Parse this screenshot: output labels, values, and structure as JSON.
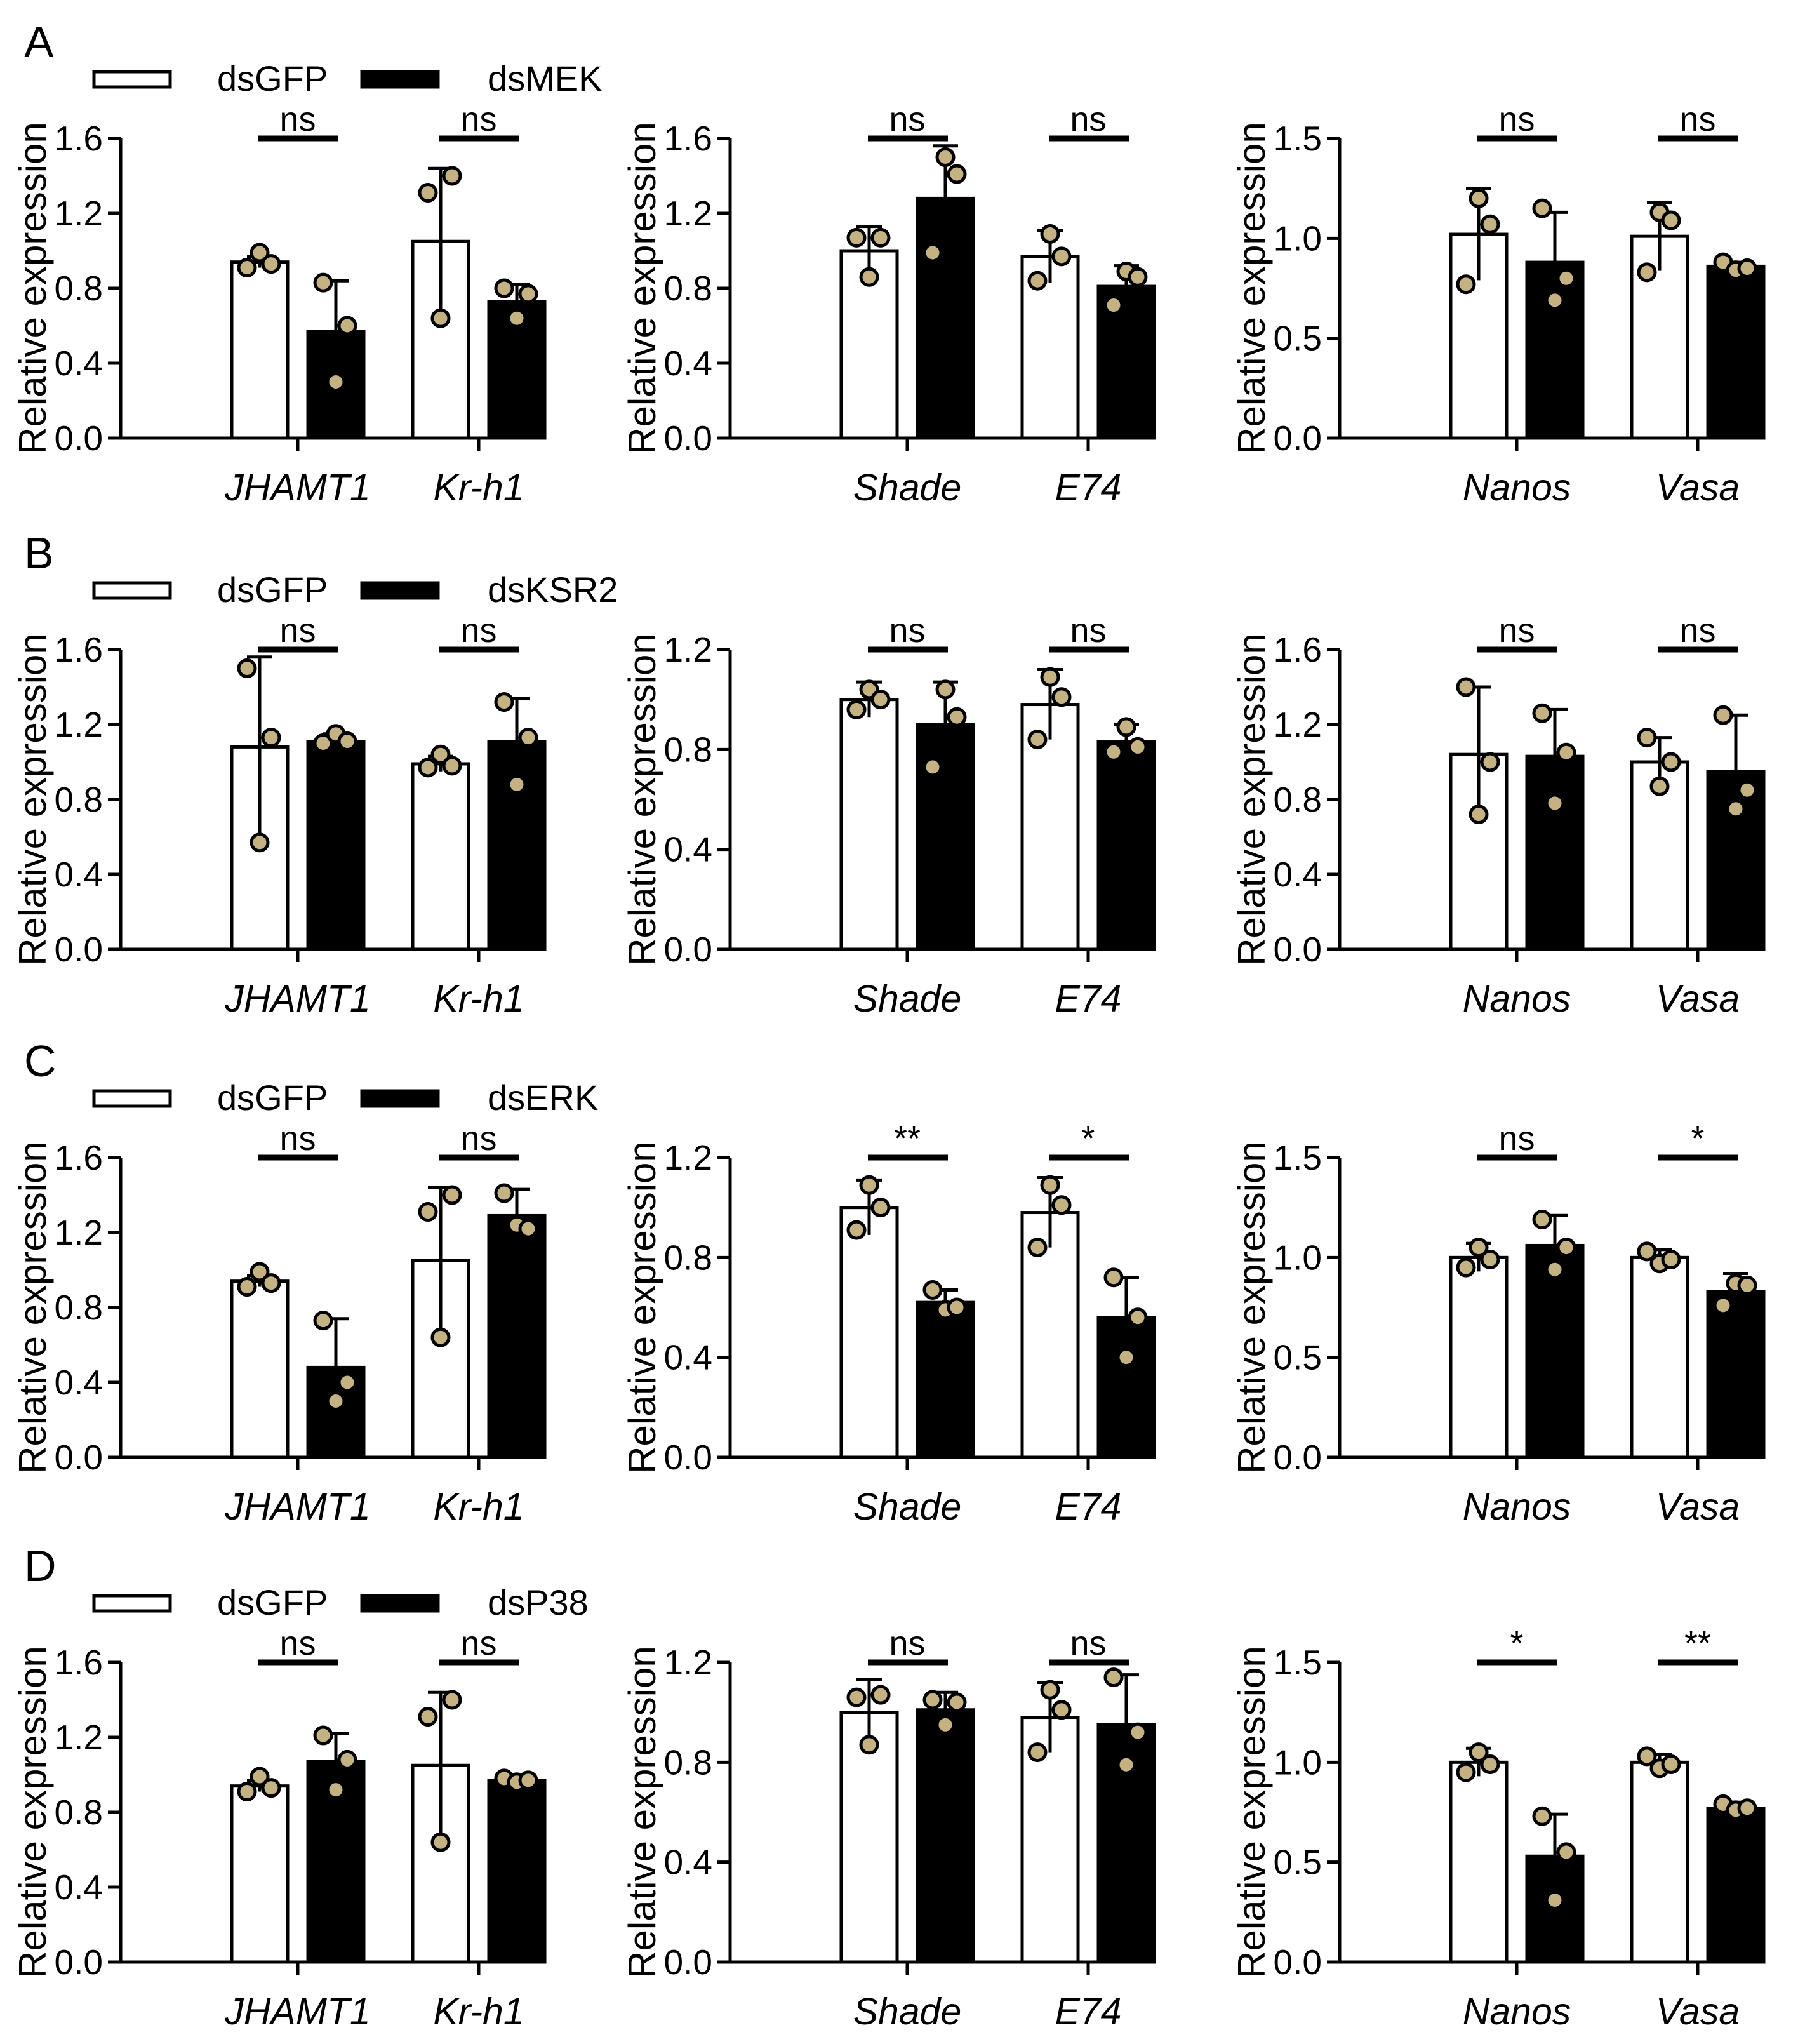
{
  "colors": {
    "control_fill": "#ffffff",
    "treatment_fill": "#000000",
    "dot_fill": "#c4b283",
    "stroke": "#000000"
  },
  "chart_data": [
    {
      "row": "A",
      "legend": [
        "dsGFP",
        "dsMEK"
      ],
      "panels": [
        {
          "type": "bar",
          "ylabel": "Relative expression",
          "ylim": [
            0,
            1.6
          ],
          "yticks": [
            "0.0",
            "0.4",
            "0.8",
            "1.2",
            "1.6"
          ],
          "categories": [
            "JHAMT1",
            "Kr-h1"
          ],
          "series": [
            {
              "name": "dsGFP",
              "means": [
                0.94,
                1.05
              ],
              "errors": [
                0.03,
                0.39
              ],
              "points": [
                [
                  0.91,
                  0.99,
                  0.93
                ],
                [
                  1.31,
                  0.64,
                  1.4
                ]
              ]
            },
            {
              "name": "dsMEK",
              "means": [
                0.57,
                0.73
              ],
              "errors": [
                0.27,
                0.09
              ],
              "points": [
                [
                  0.83,
                  0.3,
                  0.6
                ],
                [
                  0.8,
                  0.64,
                  0.77
                ]
              ]
            }
          ],
          "significance": [
            "ns",
            "ns"
          ]
        },
        {
          "type": "bar",
          "ylabel": "Relative expression",
          "ylim": [
            0,
            1.6
          ],
          "yticks": [
            "0.0",
            "0.4",
            "0.8",
            "1.2",
            "1.6"
          ],
          "categories": [
            "Shade",
            "E74"
          ],
          "series": [
            {
              "name": "dsGFP",
              "means": [
                1.0,
                0.97
              ],
              "errors": [
                0.13,
                0.14
              ],
              "points": [
                [
                  1.07,
                  0.86,
                  1.07
                ],
                [
                  0.84,
                  1.09,
                  0.97
                ]
              ]
            },
            {
              "name": "dsMEK",
              "means": [
                1.28,
                0.81
              ],
              "errors": [
                0.28,
                0.11
              ],
              "points": [
                [
                  0.99,
                  1.5,
                  1.41
                ],
                [
                  0.71,
                  0.89,
                  0.86
                ]
              ]
            }
          ],
          "significance": [
            "ns",
            "ns"
          ]
        },
        {
          "type": "bar",
          "ylabel": "Relative expression",
          "ylim": [
            0,
            1.5
          ],
          "yticks": [
            "0.0",
            "0.5",
            "1.0",
            "1.5"
          ],
          "categories": [
            "Nanos",
            "Vasa"
          ],
          "series": [
            {
              "name": "dsGFP",
              "means": [
                1.02,
                1.01
              ],
              "errors": [
                0.23,
                0.17
              ],
              "points": [
                [
                  0.77,
                  1.2,
                  1.07
                ],
                [
                  0.83,
                  1.13,
                  1.09
                ]
              ]
            },
            {
              "name": "dsMEK",
              "means": [
                0.88,
                0.86
              ],
              "errors": [
                0.25,
                0.02
              ],
              "points": [
                [
                  1.15,
                  0.69,
                  0.8
                ],
                [
                  0.88,
                  0.84,
                  0.85
                ]
              ]
            }
          ],
          "significance": [
            "ns",
            "ns"
          ]
        }
      ]
    },
    {
      "row": "B",
      "legend": [
        "dsGFP",
        "dsKSR2"
      ],
      "panels": [
        {
          "type": "bar",
          "ylabel": "Relative expression",
          "ylim": [
            0,
            1.6
          ],
          "yticks": [
            "0.0",
            "0.4",
            "0.8",
            "1.2",
            "1.6"
          ],
          "categories": [
            "JHAMT1",
            "Kr-h1"
          ],
          "series": [
            {
              "name": "dsGFP",
              "means": [
                1.08,
                0.99
              ],
              "errors": [
                0.48,
                0.04
              ],
              "points": [
                [
                  1.5,
                  0.57,
                  1.13
                ],
                [
                  0.97,
                  1.04,
                  0.98
                ]
              ]
            },
            {
              "name": "dsKSR2",
              "means": [
                1.11,
                1.11
              ],
              "errors": [
                0.04,
                0.23
              ],
              "points": [
                [
                  1.1,
                  1.15,
                  1.11
                ],
                [
                  1.32,
                  0.88,
                  1.13
                ]
              ]
            }
          ],
          "significance": [
            "ns",
            "ns"
          ]
        },
        {
          "type": "bar",
          "ylabel": "Relative expression",
          "ylim": [
            0,
            1.2
          ],
          "yticks": [
            "0.0",
            "0.4",
            "0.8",
            "1.2"
          ],
          "categories": [
            "Shade",
            "E74"
          ],
          "series": [
            {
              "name": "dsGFP",
              "means": [
                1.0,
                0.98
              ],
              "errors": [
                0.07,
                0.14
              ],
              "points": [
                [
                  0.96,
                  1.04,
                  1.0
                ],
                [
                  0.84,
                  1.09,
                  1.01
                ]
              ]
            },
            {
              "name": "dsKSR2",
              "means": [
                0.9,
                0.83
              ],
              "errors": [
                0.17,
                0.07
              ],
              "points": [
                [
                  0.73,
                  1.04,
                  0.93
                ],
                [
                  0.79,
                  0.89,
                  0.81
                ]
              ]
            }
          ],
          "significance": [
            "ns",
            "ns"
          ]
        },
        {
          "type": "bar",
          "ylabel": "Relative expression",
          "ylim": [
            0,
            1.6
          ],
          "yticks": [
            "0.0",
            "0.4",
            "0.8",
            "1.2",
            "1.6"
          ],
          "categories": [
            "Nanos",
            "Vasa"
          ],
          "series": [
            {
              "name": "dsGFP",
              "means": [
                1.04,
                1.0
              ],
              "errors": [
                0.36,
                0.13
              ],
              "points": [
                [
                  1.4,
                  0.72,
                  1.0
                ],
                [
                  1.13,
                  0.87,
                  1.0
                ]
              ]
            },
            {
              "name": "dsKSR2",
              "means": [
                1.03,
                0.95
              ],
              "errors": [
                0.25,
                0.3
              ],
              "points": [
                [
                  1.26,
                  0.78,
                  1.05
                ],
                [
                  1.25,
                  0.75,
                  0.85
                ]
              ]
            }
          ],
          "significance": [
            "ns",
            "ns"
          ]
        }
      ]
    },
    {
      "row": "C",
      "legend": [
        "dsGFP",
        "dsERK"
      ],
      "panels": [
        {
          "type": "bar",
          "ylabel": "Relative expression",
          "ylim": [
            0,
            1.6
          ],
          "yticks": [
            "0.0",
            "0.4",
            "0.8",
            "1.2",
            "1.6"
          ],
          "categories": [
            "JHAMT1",
            "Kr-h1"
          ],
          "series": [
            {
              "name": "dsGFP",
              "means": [
                0.94,
                1.05
              ],
              "errors": [
                0.03,
                0.39
              ],
              "points": [
                [
                  0.91,
                  0.99,
                  0.93
                ],
                [
                  1.31,
                  0.64,
                  1.4
                ]
              ]
            },
            {
              "name": "dsERK",
              "means": [
                0.48,
                1.29
              ],
              "errors": [
                0.26,
                0.14
              ],
              "points": [
                [
                  0.73,
                  0.3,
                  0.4
                ],
                [
                  1.41,
                  1.24,
                  1.22
                ]
              ]
            }
          ],
          "significance": [
            "ns",
            "ns"
          ]
        },
        {
          "type": "bar",
          "ylabel": "Relative expression",
          "ylim": [
            0,
            1.2
          ],
          "yticks": [
            "0.0",
            "0.4",
            "0.8",
            "1.2"
          ],
          "categories": [
            "Shade",
            "E74"
          ],
          "series": [
            {
              "name": "dsGFP",
              "means": [
                1.0,
                0.98
              ],
              "errors": [
                0.11,
                0.14
              ],
              "points": [
                [
                  0.91,
                  1.09,
                  1.0
                ],
                [
                  0.84,
                  1.09,
                  1.01
                ]
              ]
            },
            {
              "name": "dsERK",
              "means": [
                0.62,
                0.56
              ],
              "errors": [
                0.05,
                0.16
              ],
              "points": [
                [
                  0.67,
                  0.59,
                  0.6
                ],
                [
                  0.72,
                  0.4,
                  0.56
                ]
              ]
            }
          ],
          "significance": [
            "**",
            "*"
          ]
        },
        {
          "type": "bar",
          "ylabel": "Relative expression",
          "ylim": [
            0,
            1.5
          ],
          "yticks": [
            "0.0",
            "0.5",
            "1.0",
            "1.5"
          ],
          "categories": [
            "Nanos",
            "Vasa"
          ],
          "series": [
            {
              "name": "dsGFP",
              "means": [
                1.0,
                1.0
              ],
              "errors": [
                0.07,
                0.04
              ],
              "points": [
                [
                  0.95,
                  1.05,
                  0.99
                ],
                [
                  1.03,
                  0.97,
                  0.99
                ]
              ]
            },
            {
              "name": "dsERK",
              "means": [
                1.06,
                0.83
              ],
              "errors": [
                0.15,
                0.09
              ],
              "points": [
                [
                  1.19,
                  0.94,
                  1.05
                ],
                [
                  0.76,
                  0.87,
                  0.86
                ]
              ]
            }
          ],
          "significance": [
            "ns",
            "*"
          ]
        }
      ]
    },
    {
      "row": "D",
      "legend": [
        "dsGFP",
        "dsP38"
      ],
      "panels": [
        {
          "type": "bar",
          "ylabel": "Relative expression",
          "ylim": [
            0,
            1.6
          ],
          "yticks": [
            "0.0",
            "0.4",
            "0.8",
            "1.2",
            "1.6"
          ],
          "categories": [
            "JHAMT1",
            "Kr-h1"
          ],
          "series": [
            {
              "name": "dsGFP",
              "means": [
                0.94,
                1.05
              ],
              "errors": [
                0.03,
                0.39
              ],
              "points": [
                [
                  0.91,
                  0.99,
                  0.93
                ],
                [
                  1.31,
                  0.64,
                  1.4
                ]
              ]
            },
            {
              "name": "dsP38",
              "means": [
                1.07,
                0.97
              ],
              "errors": [
                0.15,
                0.02
              ],
              "points": [
                [
                  1.21,
                  0.92,
                  1.08
                ],
                [
                  0.98,
                  0.96,
                  0.97
                ]
              ]
            }
          ],
          "significance": [
            "ns",
            "ns"
          ]
        },
        {
          "type": "bar",
          "ylabel": "Relative expression",
          "ylim": [
            0,
            1.2
          ],
          "yticks": [
            "0.0",
            "0.4",
            "0.8",
            "1.2"
          ],
          "categories": [
            "Shade",
            "E74"
          ],
          "series": [
            {
              "name": "dsGFP",
              "means": [
                1.0,
                0.98
              ],
              "errors": [
                0.13,
                0.14
              ],
              "points": [
                [
                  1.06,
                  0.87,
                  1.07
                ],
                [
                  0.84,
                  1.09,
                  1.01
                ]
              ]
            },
            {
              "name": "dsP38",
              "means": [
                1.01,
                0.95
              ],
              "errors": [
                0.07,
                0.2
              ],
              "points": [
                [
                  1.05,
                  0.95,
                  1.04
                ],
                [
                  1.14,
                  0.79,
                  0.92
                ]
              ]
            }
          ],
          "significance": [
            "ns",
            "ns"
          ]
        },
        {
          "type": "bar",
          "ylabel": "Relative expression",
          "ylim": [
            0,
            1.5
          ],
          "yticks": [
            "0.0",
            "0.5",
            "1.0",
            "1.5"
          ],
          "categories": [
            "Nanos",
            "Vasa"
          ],
          "series": [
            {
              "name": "dsGFP",
              "means": [
                1.0,
                1.0
              ],
              "errors": [
                0.07,
                0.04
              ],
              "points": [
                [
                  0.95,
                  1.05,
                  0.99
                ],
                [
                  1.03,
                  0.97,
                  0.99
                ]
              ]
            },
            {
              "name": "dsP38",
              "means": [
                0.53,
                0.77
              ],
              "errors": [
                0.21,
                0.03
              ],
              "points": [
                [
                  0.73,
                  0.31,
                  0.55
                ],
                [
                  0.79,
                  0.76,
                  0.77
                ]
              ]
            }
          ],
          "significance": [
            "*",
            "**"
          ]
        }
      ]
    }
  ]
}
